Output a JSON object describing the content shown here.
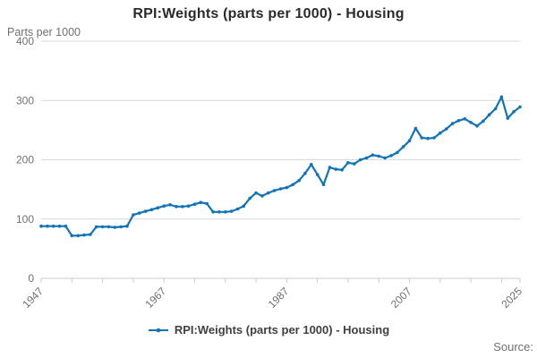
{
  "header": {
    "title": "RPI:Weights (parts per 1000) - Housing",
    "y_axis_unit": "Parts per 1000"
  },
  "legend": {
    "label": "RPI:Weights (parts per 1000) - Housing",
    "marker": "line-with-dot-icon"
  },
  "footer": {
    "source_label": "Source:"
  },
  "colors": {
    "series_line": "#1274b8",
    "grid": "#d9d9d9",
    "axis": "#c3cede",
    "tick_label": "#707070",
    "title_text": "#2b2b2b",
    "legend_text": "#414042",
    "source_text": "#707070",
    "background": "#ffffff"
  },
  "chart_data": {
    "type": "line",
    "title": "RPI:Weights (parts per 1000) - Housing",
    "xlabel": "",
    "ylabel": "Parts per 1000",
    "ylim": [
      0,
      400
    ],
    "yticks": [
      0,
      100,
      200,
      300,
      400
    ],
    "xticks": [
      1947,
      1952,
      1957,
      1962,
      1967,
      1972,
      1977,
      1982,
      1987,
      1992,
      1997,
      2002,
      2007,
      2012,
      2017,
      2022,
      2025
    ],
    "xtick_labels_shown": [
      1947,
      1967,
      1987,
      2007,
      2025
    ],
    "grid": "horizontal",
    "legend_position": "bottom",
    "marker": "circle",
    "x": [
      1947,
      1948,
      1949,
      1950,
      1951,
      1952,
      1953,
      1954,
      1955,
      1956,
      1957,
      1958,
      1959,
      1960,
      1961,
      1962,
      1963,
      1964,
      1965,
      1966,
      1967,
      1968,
      1969,
      1970,
      1971,
      1972,
      1973,
      1974,
      1975,
      1976,
      1977,
      1978,
      1979,
      1980,
      1981,
      1982,
      1983,
      1984,
      1985,
      1986,
      1987,
      1988,
      1989,
      1990,
      1991,
      1992,
      1993,
      1994,
      1995,
      1996,
      1997,
      1998,
      1999,
      2000,
      2001,
      2002,
      2003,
      2004,
      2005,
      2006,
      2007,
      2008,
      2009,
      2010,
      2011,
      2012,
      2013,
      2014,
      2015,
      2016,
      2017,
      2018,
      2019,
      2020,
      2021,
      2022,
      2023,
      2024,
      2025
    ],
    "series": [
      {
        "name": "RPI:Weights (parts per 1000) - Housing",
        "values": [
          88,
          88,
          88,
          88,
          88,
          72,
          72,
          73,
          74,
          87,
          87,
          87,
          86,
          87,
          88,
          107,
          110,
          113,
          116,
          119,
          122,
          124,
          121,
          121,
          122,
          125,
          128,
          126,
          112,
          112,
          112,
          113,
          117,
          122,
          135,
          144,
          139,
          144,
          148,
          151,
          153,
          158,
          165,
          177,
          192,
          175,
          158,
          187,
          184,
          183,
          195,
          193,
          200,
          203,
          208,
          206,
          203,
          207,
          212,
          222,
          232,
          253,
          237,
          236,
          237,
          245,
          252,
          261,
          266,
          269,
          263,
          257,
          265,
          276,
          286,
          306,
          270,
          281,
          289
        ]
      }
    ]
  }
}
